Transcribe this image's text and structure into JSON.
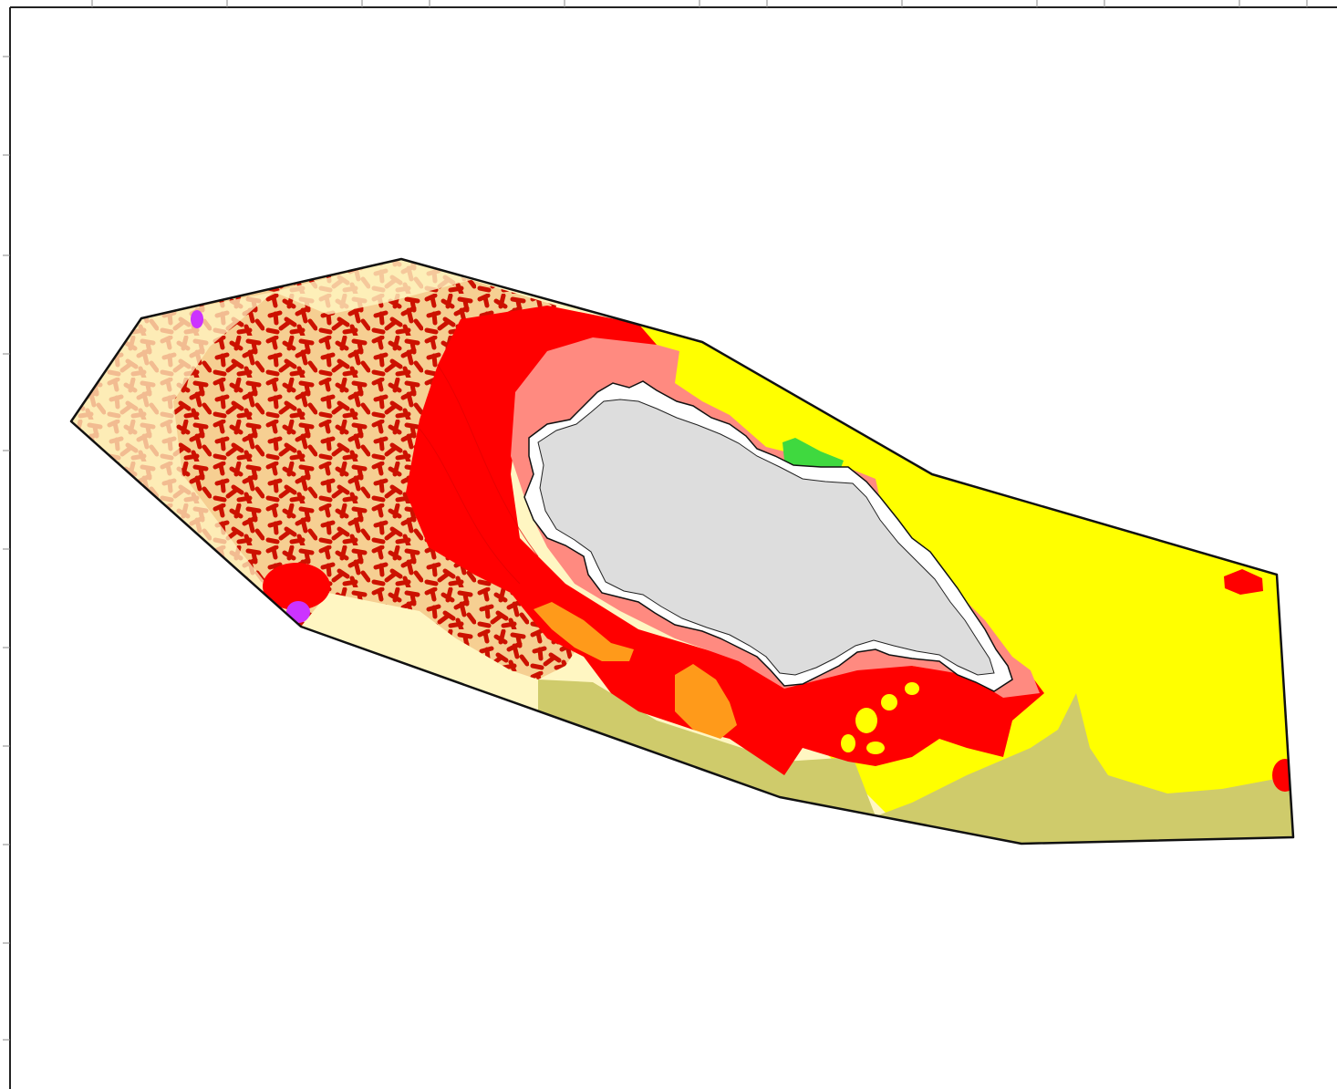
{
  "map": {
    "legend": [],
    "colors": {
      "background": "#ffffff",
      "frame": "#222222",
      "outline": "#111111",
      "sand_cream": "#fff6c2",
      "peach": "#f6cf92",
      "pattern_red": "#cc1100",
      "red": "#ff0000",
      "pink": "#ff8a80",
      "yellow": "#ffff00",
      "olive": "#cfcb6b",
      "orange": "#ff9a1a",
      "green": "#3fd93f",
      "purple": "#cc33ff",
      "island_gray": "#dddddd",
      "island_edge": "#ffffff"
    },
    "layers": [
      "outer-boundary",
      "western-patterned-zone",
      "red-zone",
      "pink-buffer",
      "yellow-zone",
      "olive-zone",
      "orange-patches",
      "green-patch",
      "purple-spots",
      "island"
    ]
  }
}
